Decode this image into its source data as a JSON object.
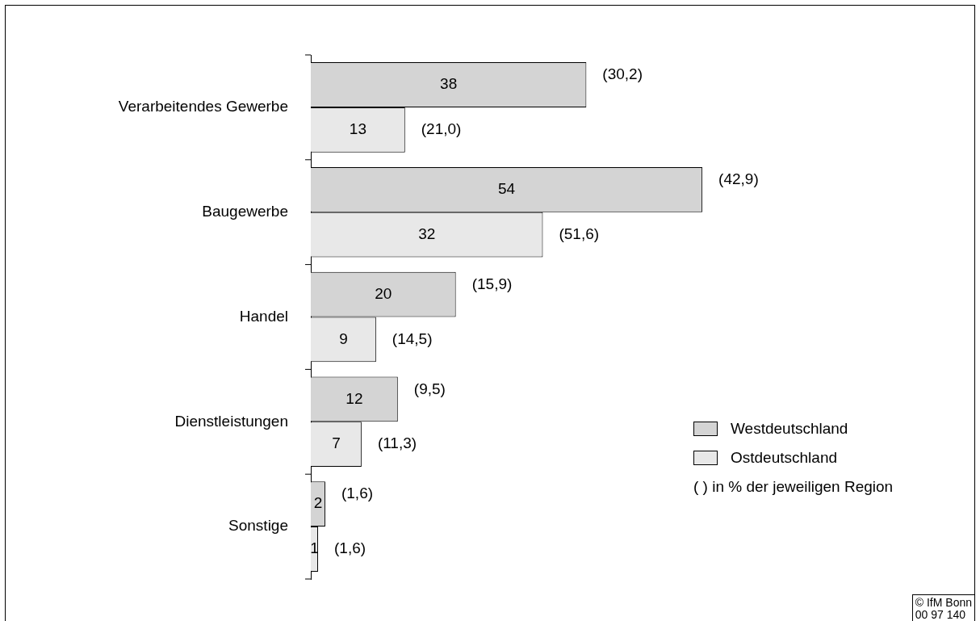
{
  "chart_data": {
    "type": "bar",
    "orientation": "horizontal",
    "categories": [
      "Verarbeitendes Gewerbe",
      "Baugewerbe",
      "Handel",
      "Dienstleistungen",
      "Sonstige"
    ],
    "series": [
      {
        "name": "Westdeutschland",
        "color": "#d4d4d4",
        "values": [
          38,
          54,
          20,
          12,
          2
        ]
      },
      {
        "name": "Ostdeutschland",
        "color": "#e8e8e8",
        "values": [
          13,
          32,
          9,
          7,
          1
        ]
      }
    ],
    "tick_labels": "y",
    "data_labels": true,
    "legend": "bottom right",
    "annotations": [
      {
        "text": "(30,2)",
        "x": 38,
        "y": "Verarbeitendes Gewerbe"
      },
      {
        "text": "(21,0)",
        "x": 13,
        "y": "Verarbeitendes Gewerbe"
      },
      {
        "text": "(42,9)",
        "x": 54,
        "y": "Baugewerbe"
      },
      {
        "text": "(51,6)",
        "x": 32,
        "y": "Baugewerbe"
      },
      {
        "text": "(15,9)",
        "x": 20,
        "y": "Handel"
      },
      {
        "text": "(14,5)",
        "x": 9,
        "y": "Handel"
      },
      {
        "text": "(9,5)",
        "x": 12,
        "y": "Dienstleistungen"
      },
      {
        "text": "(11,3)",
        "x": 7,
        "y": "Dienstleistungen"
      },
      {
        "text": "(1,6)",
        "x": 2,
        "y": "Sonstige"
      },
      {
        "text": "(1,6)",
        "x": 1,
        "y": "Sonstige"
      },
      "( ) in % der jeweiligen Region",
      "© IfM Bonn\n00 97 140"
    ]
  }
}
